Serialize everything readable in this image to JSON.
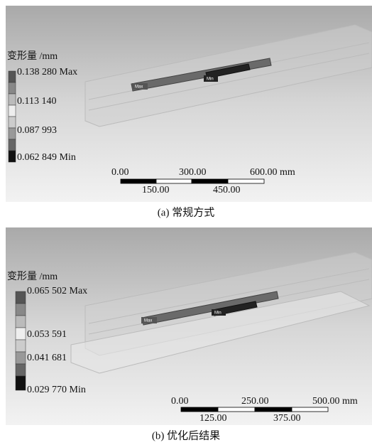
{
  "panels": [
    {
      "legend_title": "变形量 /mm",
      "legend_labels": [
        "0.138 280 Max",
        "0.113 140",
        "0.087 993",
        "0.062 849 Min"
      ],
      "scale_labels_top": [
        "0.00",
        "300.00",
        "600.00 mm"
      ],
      "scale_labels_bottom": [
        "150.00",
        "450.00"
      ],
      "tags": [
        "Max",
        "Min"
      ],
      "caption": "(a) 常规方式"
    },
    {
      "legend_title": "变形量 /mm",
      "legend_labels": [
        "0.065 502 Max",
        "0.053 591",
        "0.041 681",
        "0.029 770 Min"
      ],
      "scale_labels_top": [
        "0.00",
        "250.00",
        "500.00 mm"
      ],
      "scale_labels_bottom": [
        "125.00",
        "375.00"
      ],
      "tags": [
        "Max",
        "Min"
      ],
      "caption": "(b) 优化后结果"
    }
  ]
}
